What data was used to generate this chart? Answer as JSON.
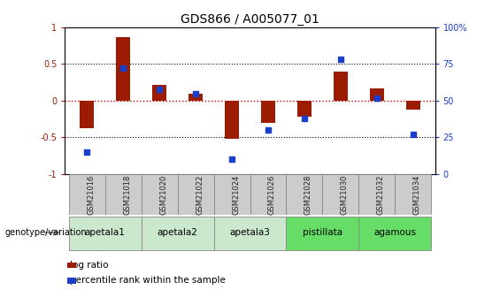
{
  "title": "GDS866 / A005077_01",
  "samples": [
    "GSM21016",
    "GSM21018",
    "GSM21020",
    "GSM21022",
    "GSM21024",
    "GSM21026",
    "GSM21028",
    "GSM21030",
    "GSM21032",
    "GSM21034"
  ],
  "log_ratio": [
    -0.38,
    0.87,
    0.22,
    0.1,
    -0.52,
    -0.3,
    -0.22,
    0.4,
    0.17,
    -0.12
  ],
  "percentile_rank_pct": [
    15,
    72,
    58,
    55,
    10,
    30,
    38,
    78,
    52,
    27
  ],
  "groups": [
    {
      "name": "apetala1",
      "span": [
        0,
        1
      ],
      "color": "#cce8cc"
    },
    {
      "name": "apetala2",
      "span": [
        2,
        3
      ],
      "color": "#cce8cc"
    },
    {
      "name": "apetala3",
      "span": [
        4,
        5
      ],
      "color": "#cce8cc"
    },
    {
      "name": "pistillata",
      "span": [
        6,
        7
      ],
      "color": "#66dd66"
    },
    {
      "name": "agamous",
      "span": [
        8,
        9
      ],
      "color": "#66dd66"
    }
  ],
  "ylim": [
    -1,
    1
  ],
  "yticks_left": [
    -1,
    -0.5,
    0,
    0.5,
    1
  ],
  "yticks_right": [
    0,
    25,
    50,
    75,
    100
  ],
  "bar_color": "#9b1c00",
  "dot_color": "#1a3fcc",
  "zero_line_color": "#cc0000",
  "dotted_line_color": "#000000",
  "bg_color": "#ffffff",
  "plot_bg": "#ffffff",
  "grid_lines": [
    -0.5,
    0,
    0.5
  ],
  "title_fontsize": 10,
  "tick_fontsize": 7,
  "bar_width": 0.4,
  "dot_size": 5,
  "sample_box_color": "#cccccc",
  "sample_box_edge": "#888888",
  "group_box_edge": "#888888"
}
